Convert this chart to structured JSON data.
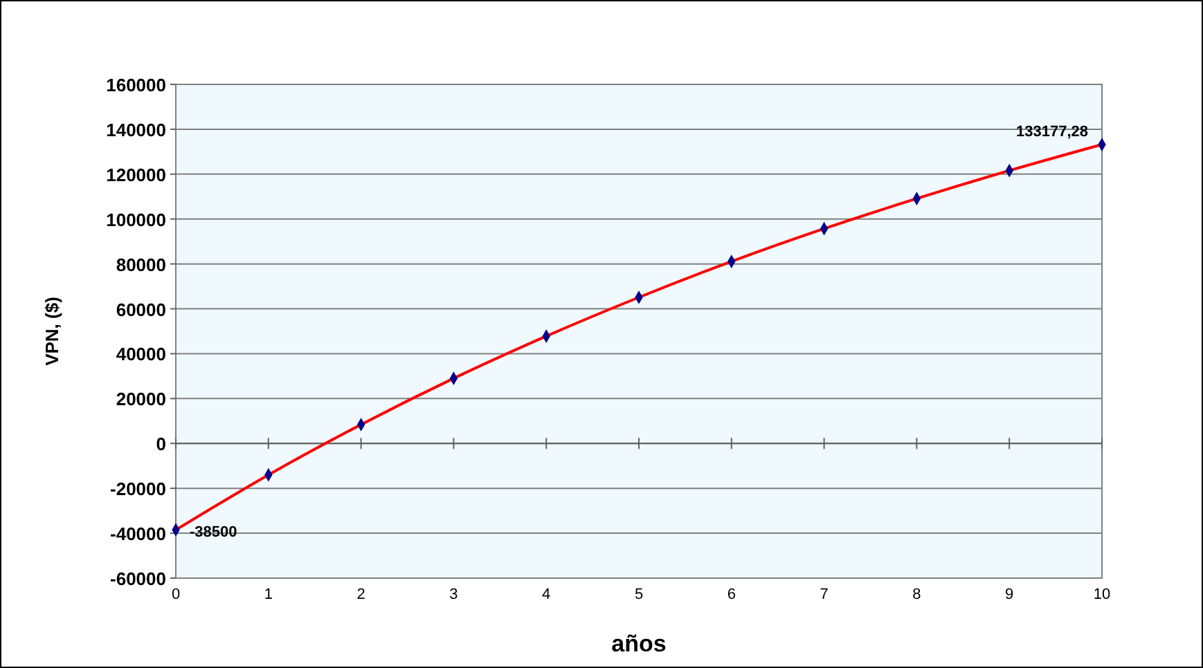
{
  "chart_data": {
    "type": "line",
    "xlabel": "años",
    "ylabel": "VPN, ($)",
    "x": [
      0,
      1,
      2,
      3,
      4,
      5,
      6,
      7,
      8,
      9,
      10
    ],
    "series": [
      {
        "color": "#ff0000",
        "values": [
          -38500,
          -14000,
          8400,
          29000,
          47800,
          65100,
          81100,
          95700,
          109100,
          121600,
          133177.28
        ]
      }
    ],
    "xlim": [
      0,
      10
    ],
    "xticks": [
      0,
      1,
      2,
      3,
      4,
      5,
      6,
      7,
      8,
      9,
      10
    ],
    "ylim": [
      -60000,
      160000
    ],
    "yticks": [
      -60000,
      -40000,
      -20000,
      0,
      20000,
      40000,
      60000,
      80000,
      100000,
      120000,
      140000,
      160000
    ],
    "grid": "y",
    "marker": "diamond",
    "line_style": "solid",
    "annotations": [
      {
        "text": "-38500",
        "x": 0,
        "y": -38500
      },
      {
        "text": "133177,28",
        "x": 10,
        "y": 133177.28
      }
    ]
  }
}
